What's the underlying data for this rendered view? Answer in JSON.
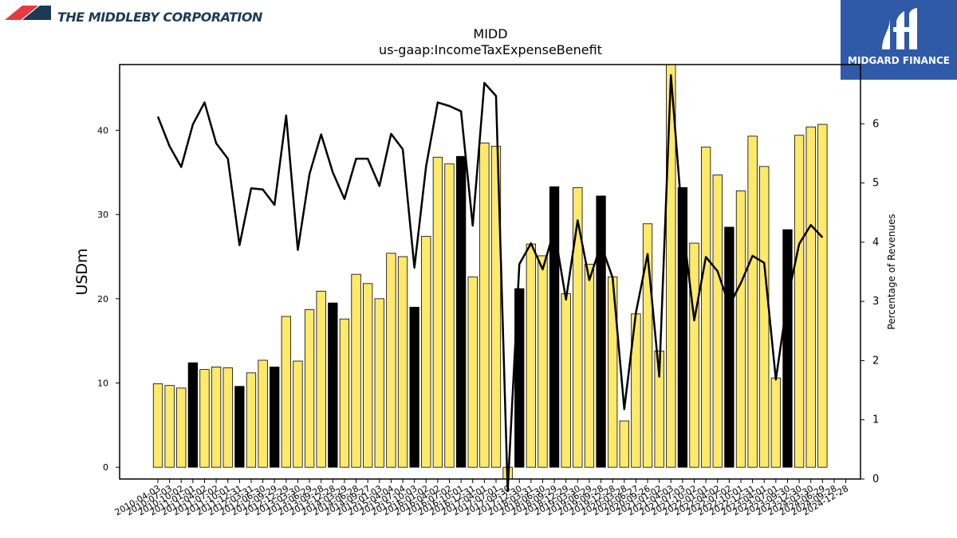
{
  "branding": {
    "left_logo_text": "THE MIDDLEBY CORPORATION",
    "right_logo_text": "MIDGARD FINANCE",
    "left_logo_colors": [
      "#e8383d",
      "#1c3a57"
    ],
    "right_logo_bg": "#2f5aa8"
  },
  "chart_data": {
    "type": "bar",
    "title": "MIDD",
    "subtitle": "us-gaap:IncomeTaxExpenseBenefit",
    "ylabel": "USDm",
    "y2label": "Percentage of Revenues",
    "ylim": [
      -1.4,
      47.8
    ],
    "y2lim": [
      0,
      7.0
    ],
    "yticks": [
      0,
      10,
      20,
      30,
      40
    ],
    "y2ticks": [
      0,
      1,
      2,
      3,
      4,
      5,
      6
    ],
    "grid": false,
    "bar_color": "#ffe96b",
    "highlight_color": "#000000",
    "line_color": "#000000",
    "categories": [
      "2010-04-03",
      "2010-07-03",
      "2010-10-02",
      "2011-01-01",
      "2011-04-02",
      "2011-07-02",
      "2011-10-01",
      "2011-12-31",
      "2012-03-31",
      "2012-06-30",
      "2012-09-29",
      "2012-12-29",
      "2013-03-30",
      "2013-06-29",
      "2013-09-28",
      "2013-12-28",
      "2014-03-29",
      "2014-06-28",
      "2014-09-27",
      "2015-01-03",
      "2015-04-04",
      "2015-07-04",
      "2015-10-03",
      "2016-01-02",
      "2016-04-02",
      "2016-07-02",
      "2016-10-01",
      "2016-12-31",
      "2017-04-01",
      "2017-07-01",
      "2017-09-30",
      "2017-12-30",
      "2018-03-31",
      "2018-06-30",
      "2018-09-29",
      "2018-12-29",
      "2019-03-30",
      "2019-06-29",
      "2019-09-28",
      "2019-12-28",
      "2020-03-28",
      "2020-06-27",
      "2020-09-26",
      "2021-01-02",
      "2021-04-03",
      "2021-07-03",
      "2021-10-02",
      "2022-01-01",
      "2022-04-02",
      "2022-07-02",
      "2022-10-01",
      "2022-12-31",
      "2023-04-01",
      "2023-07-01",
      "2023-09-30",
      "2023-12-30",
      "2024-03-30",
      "2024-06-29",
      "2024-09-28",
      "2024-12-28"
    ],
    "values": [
      9.9,
      9.7,
      9.4,
      12.4,
      11.6,
      11.9,
      11.8,
      9.6,
      11.2,
      12.7,
      11.9,
      17.9,
      12.6,
      18.7,
      20.9,
      19.5,
      17.6,
      22.9,
      21.8,
      20.0,
      25.4,
      25.0,
      19.0,
      27.4,
      36.8,
      36.0,
      36.9,
      22.6,
      38.5,
      38.1,
      -1.4,
      21.2,
      26.5,
      25.1,
      33.3,
      20.6,
      33.2,
      24.1,
      32.2,
      22.6,
      5.5,
      18.2,
      28.9,
      13.8,
      48.5,
      33.2,
      26.6,
      38.0,
      34.7,
      28.5,
      32.8,
      39.3,
      35.7,
      10.6,
      28.2,
      39.4,
      40.4,
      40.7,
      null,
      null
    ],
    "highlighted": [
      "2011-01-01",
      "2011-12-31",
      "2012-09-29",
      "2013-12-28",
      "2015-10-03",
      "2016-10-01",
      "2017-12-30",
      "2018-09-29",
      "2019-09-28",
      "2021-07-03",
      "2022-07-02",
      "2023-09-30",
      "2024-09-28"
    ],
    "percent_of_revenues": [
      6.12,
      5.62,
      5.27,
      5.99,
      6.36,
      5.67,
      5.41,
      3.95,
      4.91,
      4.89,
      4.63,
      6.14,
      3.87,
      5.15,
      5.82,
      5.18,
      4.73,
      5.41,
      5.41,
      4.95,
      5.83,
      5.57,
      3.57,
      5.28,
      6.36,
      6.3,
      6.21,
      4.28,
      6.69,
      6.47,
      -0.2,
      3.63,
      3.98,
      3.54,
      4.21,
      3.03,
      4.37,
      3.36,
      3.96,
      3.4,
      1.18,
      2.81,
      3.8,
      1.73,
      6.82,
      4.31,
      2.68,
      3.75,
      3.51,
      2.93,
      3.31,
      3.77,
      3.65,
      1.68,
      3.04,
      3.97,
      4.29,
      4.08,
      null,
      null
    ]
  }
}
